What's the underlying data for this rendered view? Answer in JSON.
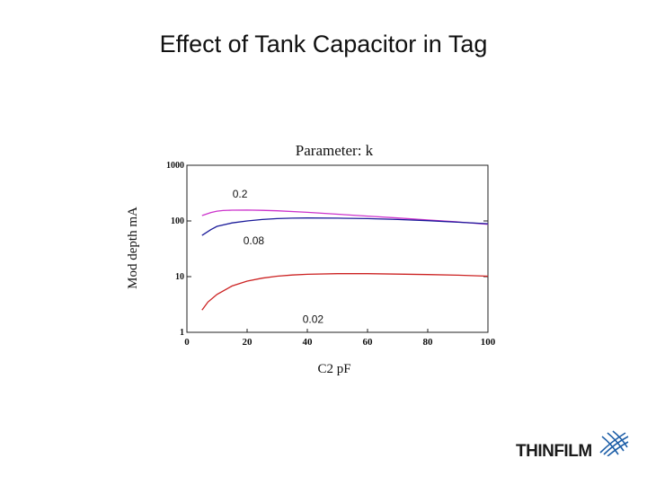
{
  "slide": {
    "title": "Effect of Tank Capacitor in Tag"
  },
  "logo": {
    "text": "THINFILM",
    "mark": "grid-mesh-icon"
  },
  "chart_data": {
    "type": "line",
    "title": "Parameter: k",
    "xlabel": "C2 pF",
    "ylabel": "Mod depth mA",
    "xlim": [
      0,
      100
    ],
    "ylim": [
      1,
      1000
    ],
    "yscale": "log",
    "grid": false,
    "x_ticks": [
      0,
      20,
      40,
      60,
      80,
      100
    ],
    "x_tick_labels": [
      "0",
      "20",
      "40",
      "60",
      "80",
      "100"
    ],
    "y_ticks": [
      1,
      10,
      100,
      1000
    ],
    "y_tick_labels": [
      "1",
      "10",
      "100",
      "1000"
    ],
    "series": [
      {
        "name": "0.2",
        "color": "#cc33cc",
        "x": [
          5,
          8,
          10,
          12,
          15,
          20,
          25,
          30,
          40,
          50,
          60,
          70,
          80,
          90,
          100
        ],
        "y": [
          125,
          142,
          150,
          154,
          156,
          157,
          155,
          152,
          143,
          132,
          122,
          113,
          104,
          96,
          87
        ]
      },
      {
        "name": "0.08",
        "color": "#1a1a99",
        "x": [
          5,
          8,
          10,
          15,
          20,
          25,
          30,
          35,
          40,
          50,
          60,
          70,
          80,
          90,
          100
        ],
        "y": [
          55,
          70,
          80,
          92,
          100,
          106,
          110,
          112,
          113,
          112,
          110,
          106,
          101,
          95,
          89
        ]
      },
      {
        "name": "0.02",
        "color": "#cc2222",
        "x": [
          5,
          7,
          10,
          15,
          20,
          25,
          30,
          35,
          40,
          50,
          60,
          70,
          80,
          90,
          100
        ],
        "y": [
          2.5,
          3.5,
          4.8,
          6.8,
          8.3,
          9.4,
          10.2,
          10.7,
          11.0,
          11.3,
          11.3,
          11.1,
          10.9,
          10.6,
          10.2
        ]
      }
    ]
  }
}
